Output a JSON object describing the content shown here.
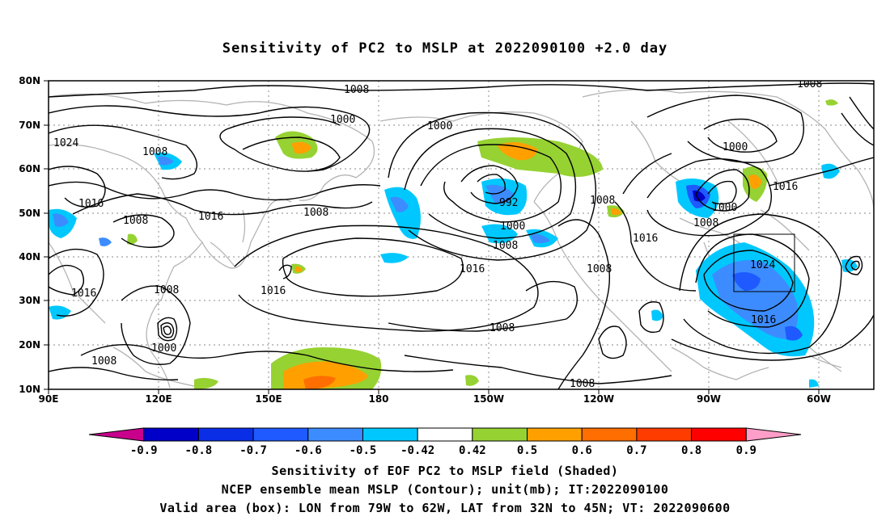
{
  "title": "Sensitivity of PC2 to MSLP at 2022090100 +2.0 day",
  "map": {
    "lat_labels": [
      "80N",
      "70N",
      "60N",
      "50N",
      "40N",
      "30N",
      "20N",
      "10N"
    ],
    "lon_labels": [
      "90E",
      "120E",
      "150E",
      "180",
      "150W",
      "120W",
      "90W",
      "60W"
    ],
    "contour_labels": [
      "1008",
      "1000",
      "1024",
      "1008",
      "1000",
      "1008",
      "1016",
      "1016",
      "1008",
      "1008",
      "992",
      "1000",
      "1008",
      "1016",
      "1008",
      "1016",
      "1008",
      "1016",
      "1008",
      "1000",
      "1000",
      "1016",
      "1008",
      "1016",
      "1024",
      "1016",
      "1008",
      "1000",
      "1008"
    ],
    "valid_box": {
      "lon_w": "79W",
      "lon_e": "62W",
      "lat_s": "32N",
      "lat_n": "45N"
    },
    "colors": {
      "border": "#000000",
      "coast": "#b4b4b4",
      "grid": "#a0a0a0"
    }
  },
  "colorbar": {
    "labels": [
      "-0.9",
      "-0.8",
      "-0.7",
      "-0.6",
      "-0.5",
      "-0.42",
      "0.42",
      "0.5",
      "0.6",
      "0.7",
      "0.8",
      "0.9"
    ],
    "colors": [
      "#c8008c",
      "#0000c8",
      "#0a2ee6",
      "#1e5aff",
      "#3c8cff",
      "#00c8ff",
      "#ffffff",
      "#96d232",
      "#ffa000",
      "#ff6e00",
      "#ff3c00",
      "#ff0000",
      "#ff9ec8"
    ]
  },
  "captions": [
    "Sensitivity of EOF PC2 to MSLP field (Shaded)",
    "NCEP ensemble mean MSLP (Contour); unit(mb); IT:2022090100",
    "Valid area (box): LON from 79W to 62W, LAT from 32N to 45N; VT: 2022090600"
  ]
}
